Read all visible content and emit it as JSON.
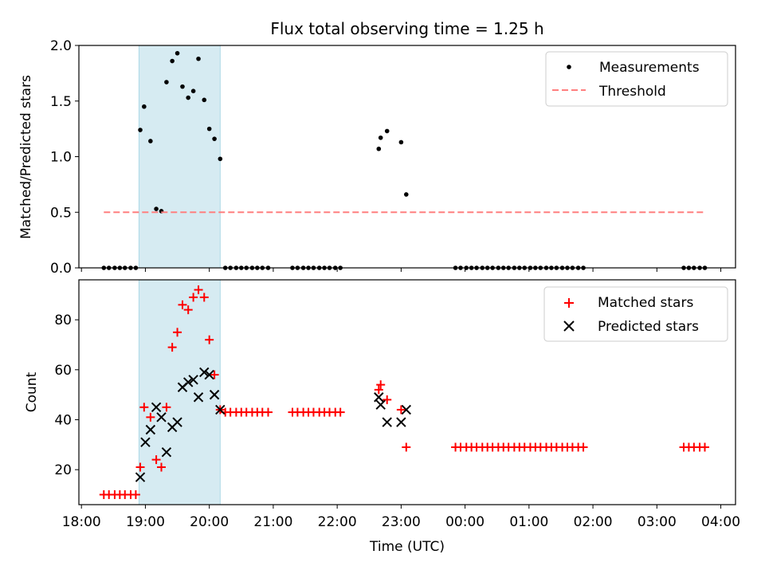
{
  "chart_data": {
    "title": "Flux total observing time = 1.25 h",
    "xlabel": "Time (UTC)",
    "x_ticks": [
      "18:00",
      "19:00",
      "20:00",
      "21:00",
      "22:00",
      "23:00",
      "00:00",
      "01:00",
      "02:00",
      "03:00",
      "04:00"
    ],
    "x_range_hours": [
      17.96,
      28.23
    ],
    "shaded_span_hours": [
      18.9,
      20.17
    ],
    "shaded_color": "#add8e6",
    "panels": [
      {
        "type": "scatter",
        "ylabel": "Matched/Predicted stars",
        "ylim": [
          0,
          2.0
        ],
        "yticks": [
          "0.0",
          "0.5",
          "1.0",
          "1.5",
          "2.0"
        ],
        "legend": [
          "Measurements",
          "Threshold"
        ],
        "legend_position": "top-right",
        "series": [
          {
            "name": "Measurements",
            "marker": "dot",
            "color": "#000000",
            "x": [
              18.35,
              18.43,
              18.52,
              18.6,
              18.68,
              18.77,
              18.85,
              18.92,
              18.98,
              19.08,
              19.17,
              19.25,
              19.33,
              19.42,
              19.5,
              19.58,
              19.67,
              19.75,
              19.83,
              19.92,
              20.0,
              20.08,
              20.17,
              20.25,
              20.33,
              20.42,
              20.5,
              20.58,
              20.67,
              20.75,
              20.83,
              20.92,
              21.3,
              21.38,
              21.47,
              21.55,
              21.63,
              21.72,
              21.8,
              21.88,
              21.97,
              22.05,
              22.65,
              22.68,
              22.78,
              23.0,
              23.08,
              23.85,
              23.93,
              24.02,
              24.1,
              24.18,
              24.27,
              24.35,
              24.43,
              24.52,
              24.6,
              24.68,
              24.77,
              24.85,
              24.93,
              25.02,
              25.1,
              25.18,
              25.27,
              25.35,
              25.43,
              25.52,
              25.6,
              25.68,
              25.77,
              25.85,
              27.42,
              27.5,
              27.58,
              27.67,
              27.75
            ],
            "y": [
              0,
              0,
              0,
              0,
              0,
              0,
              0,
              1.24,
              1.45,
              1.14,
              0.53,
              0.51,
              1.67,
              1.86,
              1.93,
              1.63,
              1.53,
              1.59,
              1.88,
              1.51,
              1.25,
              1.16,
              0.98,
              0,
              0,
              0,
              0,
              0,
              0,
              0,
              0,
              0,
              0,
              0,
              0,
              0,
              0,
              0,
              0,
              0,
              0,
              0,
              1.07,
              1.17,
              1.23,
              1.13,
              0.66,
              0,
              0,
              0,
              0,
              0,
              0,
              0,
              0,
              0,
              0,
              0,
              0,
              0,
              0,
              0,
              0,
              0,
              0,
              0,
              0,
              0,
              0,
              0,
              0,
              0,
              0,
              0,
              0,
              0,
              0
            ]
          },
          {
            "name": "Threshold",
            "style": "dashed",
            "color": "#ff7f7f",
            "x": [
              18.35,
              27.75
            ],
            "y": [
              0.5,
              0.5
            ]
          }
        ]
      },
      {
        "type": "scatter",
        "ylabel": "Count",
        "ylim": [
          6,
          96
        ],
        "yticks": [
          "20",
          "40",
          "60",
          "80"
        ],
        "legend": [
          "Matched stars",
          "Predicted stars"
        ],
        "legend_position": "top-right",
        "series": [
          {
            "name": "Matched stars",
            "marker": "plus",
            "color": "#ff0000",
            "x": [
              18.35,
              18.43,
              18.52,
              18.6,
              18.68,
              18.77,
              18.85,
              18.92,
              18.98,
              19.08,
              19.17,
              19.25,
              19.33,
              19.42,
              19.5,
              19.58,
              19.67,
              19.75,
              19.83,
              19.92,
              20.0,
              20.08,
              20.17,
              20.25,
              20.33,
              20.42,
              20.5,
              20.58,
              20.67,
              20.75,
              20.83,
              20.92,
              21.3,
              21.38,
              21.47,
              21.55,
              21.63,
              21.72,
              21.8,
              21.88,
              21.97,
              22.05,
              22.65,
              22.68,
              22.78,
              23.0,
              23.08,
              23.85,
              23.93,
              24.02,
              24.1,
              24.18,
              24.27,
              24.35,
              24.43,
              24.52,
              24.6,
              24.68,
              24.77,
              24.85,
              24.93,
              25.02,
              25.1,
              25.18,
              25.27,
              25.35,
              25.43,
              25.52,
              25.6,
              25.68,
              25.77,
              25.85,
              27.42,
              27.5,
              27.58,
              27.67,
              27.75
            ],
            "y": [
              10,
              10,
              10,
              10,
              10,
              10,
              10,
              21,
              45,
              41,
              24,
              21,
              45,
              69,
              75,
              86,
              84,
              89,
              92,
              89,
              72,
              58,
              44,
              43,
              43,
              43,
              43,
              43,
              43,
              43,
              43,
              43,
              43,
              43,
              43,
              43,
              43,
              43,
              43,
              43,
              43,
              43,
              52,
              54,
              48,
              44,
              29,
              29,
              29,
              29,
              29,
              29,
              29,
              29,
              29,
              29,
              29,
              29,
              29,
              29,
              29,
              29,
              29,
              29,
              29,
              29,
              29,
              29,
              29,
              29,
              29,
              29,
              29,
              29,
              29,
              29,
              29
            ]
          },
          {
            "name": "Predicted stars",
            "marker": "x",
            "color": "#000000",
            "x": [
              18.92,
              19.0,
              19.08,
              19.17,
              19.25,
              19.33,
              19.42,
              19.5,
              19.58,
              19.67,
              19.75,
              19.83,
              19.92,
              20.0,
              20.08,
              20.17,
              22.65,
              22.68,
              22.78,
              23.0,
              23.08
            ],
            "y": [
              17,
              31,
              36,
              45,
              41,
              27,
              37,
              39,
              53,
              55,
              56,
              49,
              59,
              58,
              50,
              44,
              49,
              46,
              39,
              39,
              44
            ]
          }
        ]
      }
    ]
  }
}
